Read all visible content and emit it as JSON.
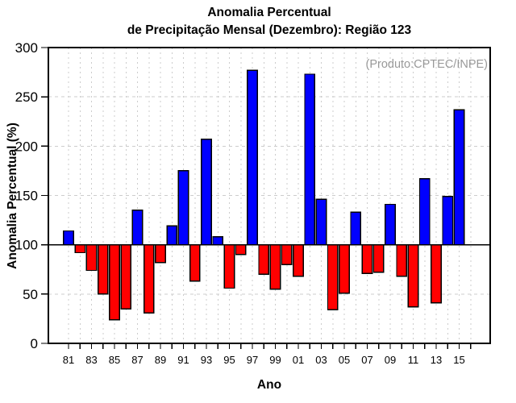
{
  "title": {
    "line1": "Anomalia Percentual",
    "line2": "de Precipitação Mensal (Dezembro): Região 123"
  },
  "annotation": "(Produto:CPTEC/INPE)",
  "axes": {
    "y_label": "Anomalia Percentual (%)",
    "x_label": "Ano"
  },
  "colors": {
    "positive_bar": "#0000ff",
    "negative_bar": "#ff0000",
    "bar_outline": "#000000",
    "grid": "#cccccc",
    "axis": "#000000",
    "annotation": "#999999",
    "background": "#ffffff"
  },
  "chart_data": {
    "type": "bar",
    "title": "Anomalia Percentual de Precipitação Mensal (Dezembro): Região 123",
    "xlabel": "Ano",
    "ylabel": "Anomalia Percentual (%)",
    "ylim": [
      0,
      300
    ],
    "yticks": [
      0,
      50,
      100,
      150,
      200,
      250,
      300
    ],
    "baseline": 100,
    "grid": "dashed, light gray, vertical at every year tick and horizontal at 50/150/200/250; solid black line at 100",
    "x_label_every": 2,
    "extra_unlabeled_x_ticks": [
      "16"
    ],
    "categories": [
      "81",
      "82",
      "83",
      "84",
      "85",
      "86",
      "87",
      "88",
      "89",
      "90",
      "91",
      "92",
      "93",
      "94",
      "95",
      "96",
      "97",
      "98",
      "99",
      "00",
      "01",
      "02",
      "03",
      "04",
      "05",
      "06",
      "07",
      "08",
      "09",
      "10",
      "11",
      "12",
      "13",
      "14",
      "15"
    ],
    "values": [
      114,
      92,
      74,
      50,
      24,
      35,
      135,
      31,
      82,
      119,
      175,
      63,
      207,
      108,
      56,
      90,
      277,
      70,
      55,
      80,
      68,
      273,
      146,
      34,
      51,
      133,
      71,
      72,
      141,
      68,
      37,
      167,
      41,
      149,
      237
    ],
    "color_rule": "blue if value >= 100 else red"
  }
}
